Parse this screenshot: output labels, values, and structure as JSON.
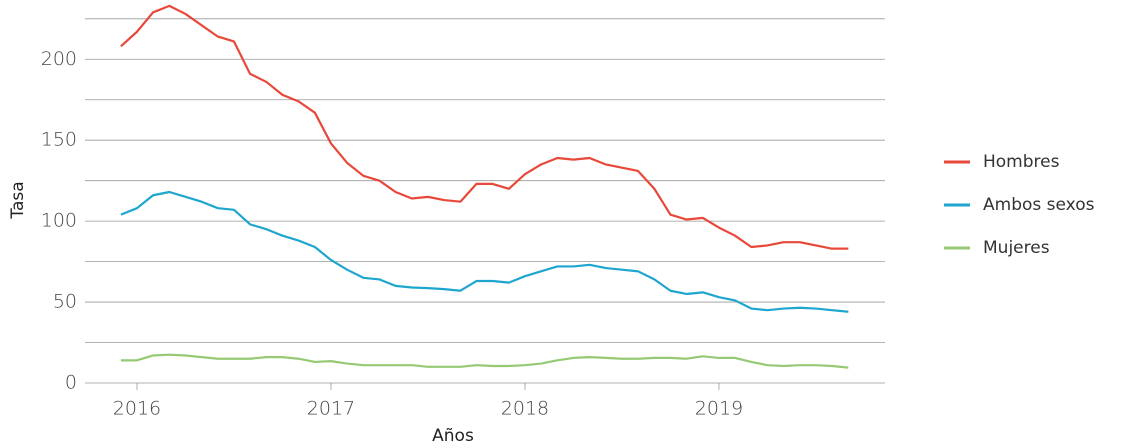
{
  "chart_data": {
    "type": "line",
    "xlabel": "Años",
    "ylabel": "Tasa",
    "x": [
      2015.917,
      2016.0,
      2016.083,
      2016.167,
      2016.25,
      2016.333,
      2016.417,
      2016.5,
      2016.583,
      2016.667,
      2016.75,
      2016.833,
      2016.917,
      2017.0,
      2017.083,
      2017.167,
      2017.25,
      2017.333,
      2017.417,
      2017.5,
      2017.583,
      2017.667,
      2017.75,
      2017.833,
      2017.917,
      2018.0,
      2018.083,
      2018.167,
      2018.25,
      2018.333,
      2018.417,
      2018.5,
      2018.583,
      2018.667,
      2018.75,
      2018.833,
      2018.917,
      2019.0,
      2019.083,
      2019.167,
      2019.25,
      2019.333,
      2019.417,
      2019.5,
      2019.583,
      2019.667
    ],
    "series": [
      {
        "name": "Hombres",
        "color": "#e8483a",
        "values": [
          208,
          217,
          229,
          233,
          228,
          221,
          214,
          211,
          191,
          186,
          178,
          174,
          167,
          148,
          136,
          128,
          125,
          118,
          114,
          115,
          113,
          112,
          123,
          123,
          120,
          129,
          135,
          139,
          138,
          139,
          135,
          133,
          131,
          120,
          104,
          101,
          102,
          96,
          91,
          84,
          85,
          87,
          87,
          85,
          83,
          83
        ]
      },
      {
        "name": "Ambos sexos",
        "color": "#1ea6cf",
        "values": [
          104,
          108,
          116,
          118,
          115,
          112,
          108,
          107,
          98,
          95,
          91,
          88,
          84,
          76,
          70,
          65,
          64,
          60,
          59,
          58.6,
          58,
          57,
          63,
          63,
          62,
          66,
          69,
          72,
          72,
          73,
          71,
          70,
          69,
          64,
          57,
          55,
          56,
          53,
          51,
          46,
          45,
          46,
          46.5,
          46,
          45,
          44
        ]
      },
      {
        "name": "Mujeres",
        "color": "#95c973",
        "values": [
          14,
          14,
          17,
          17.5,
          17,
          16,
          15,
          15,
          15,
          16,
          16,
          15,
          13,
          13.5,
          12,
          11,
          11,
          11,
          11,
          10,
          10,
          10,
          11,
          10.5,
          10.5,
          11,
          12,
          14,
          15.5,
          16,
          15.5,
          15,
          15,
          15.5,
          15.5,
          15,
          16.5,
          15.5,
          15.5,
          13,
          11,
          10.5,
          11,
          11,
          10.5,
          9.5
        ]
      }
    ],
    "xlim": [
      2015.732,
      2019.856
    ],
    "xticks": [
      2016,
      2017,
      2018,
      2019
    ],
    "ylim": [
      0,
      236
    ],
    "yticks": [
      0,
      50,
      100,
      150,
      200
    ],
    "minor_yticks": [
      25,
      75,
      125,
      175,
      225
    ],
    "grid": true,
    "legend": "right"
  }
}
